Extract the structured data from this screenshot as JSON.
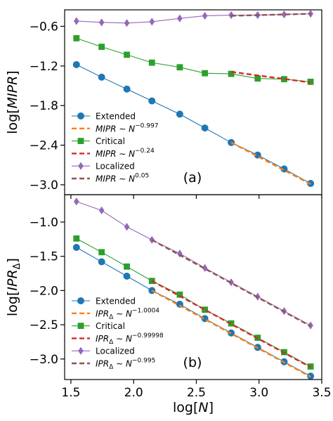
{
  "chart_data": [
    {
      "panel": "a",
      "type": "line",
      "panel_label": "(a)",
      "ylabel": "log[MIPR]",
      "xlabel": "",
      "xlim": [
        1.45,
        3.5
      ],
      "ylim": [
        -3.15,
        -0.35
      ],
      "yticks": [
        -0.6,
        -1.2,
        -1.8,
        -2.4,
        -3.0
      ],
      "ytick_labels": [
        "−0.6",
        "−1.2",
        "−1.8",
        "−2.4",
        "−3.0"
      ],
      "xticks": [
        1.5,
        2.0,
        2.5,
        3.0,
        3.5
      ],
      "legend_position": "lower-left",
      "series": [
        {
          "name": "Extended",
          "kind": "data",
          "marker": "circle",
          "color": "#1f77b4",
          "x": [
            1.544,
            1.745,
            1.946,
            2.146,
            2.368,
            2.568,
            2.778,
            2.989,
            3.2,
            3.411
          ],
          "y": [
            -1.18,
            -1.37,
            -1.55,
            -1.73,
            -1.93,
            -2.14,
            -2.36,
            -2.55,
            -2.76,
            -2.98
          ]
        },
        {
          "name": "Critical",
          "kind": "data",
          "marker": "square",
          "color": "#2ca02c",
          "x": [
            1.544,
            1.745,
            1.946,
            2.146,
            2.368,
            2.568,
            2.778,
            2.989,
            3.2,
            3.411
          ],
          "y": [
            -0.78,
            -0.91,
            -1.03,
            -1.15,
            -1.22,
            -1.31,
            -1.32,
            -1.39,
            -1.4,
            -1.44
          ]
        },
        {
          "name": "Localized",
          "kind": "data",
          "marker": "diamond",
          "color": "#9467bd",
          "x": [
            1.544,
            1.745,
            1.946,
            2.146,
            2.368,
            2.568,
            2.778,
            2.989,
            3.2,
            3.411
          ],
          "y": [
            -0.52,
            -0.54,
            -0.55,
            -0.53,
            -0.48,
            -0.44,
            -0.43,
            -0.43,
            -0.42,
            -0.41
          ]
        },
        {
          "name": "MIPR ~ N^-0.997",
          "label_main": "MIPR ~ N",
          "label_exp": "−0.997",
          "kind": "fit",
          "color": "#ff7f0e",
          "x": [
            2.778,
            3.411
          ],
          "y": [
            -2.36,
            -2.99
          ]
        },
        {
          "name": "MIPR ~ N^-0.24",
          "label_main": "MIPR ~ N",
          "label_exp": "−0.24",
          "kind": "fit",
          "color": "#d62728",
          "x": [
            2.778,
            3.411
          ],
          "y": [
            -1.29,
            -1.45
          ]
        },
        {
          "name": "MIPR ~ N^0.05",
          "label_main": "MIPR ~ N",
          "label_exp": "0.05",
          "kind": "fit",
          "color": "#8c564b",
          "x": [
            2.778,
            3.411
          ],
          "y": [
            -0.44,
            -0.41
          ]
        }
      ]
    },
    {
      "panel": "b",
      "type": "line",
      "panel_label": "(b)",
      "ylabel": "log[IPRΔ]",
      "xlabel": "log[N]",
      "xlim": [
        1.45,
        3.5
      ],
      "ylim": [
        -3.3,
        -0.6
      ],
      "yticks": [
        -1.0,
        -1.5,
        -2.0,
        -2.5,
        -3.0
      ],
      "ytick_labels": [
        "−1.0",
        "−1.5",
        "−2.0",
        "−2.5",
        "−3.0"
      ],
      "xticks": [
        1.5,
        2.0,
        2.5,
        3.0,
        3.5
      ],
      "xtick_labels": [
        "1.5",
        "2.0",
        "2.5",
        "3.0",
        "3.5"
      ],
      "legend_position": "lower-left",
      "series": [
        {
          "name": "Extended",
          "kind": "data",
          "marker": "circle",
          "color": "#1f77b4",
          "x": [
            1.544,
            1.745,
            1.946,
            2.146,
            2.368,
            2.568,
            2.778,
            2.989,
            3.2,
            3.411
          ],
          "y": [
            -1.37,
            -1.58,
            -1.79,
            -2.0,
            -2.2,
            -2.41,
            -2.62,
            -2.83,
            -3.04,
            -3.25
          ]
        },
        {
          "name": "Critical",
          "kind": "data",
          "marker": "square",
          "color": "#2ca02c",
          "x": [
            1.544,
            1.745,
            1.946,
            2.146,
            2.368,
            2.568,
            2.778,
            2.989,
            3.2,
            3.411
          ],
          "y": [
            -1.24,
            -1.44,
            -1.65,
            -1.86,
            -2.06,
            -2.28,
            -2.48,
            -2.69,
            -2.9,
            -3.11
          ]
        },
        {
          "name": "Localized",
          "kind": "data",
          "marker": "diamond",
          "color": "#9467bd",
          "x": [
            1.544,
            1.745,
            1.946,
            2.146,
            2.368,
            2.568,
            2.778,
            2.989,
            3.2,
            3.411
          ],
          "y": [
            -0.7,
            -0.83,
            -1.07,
            -1.26,
            -1.46,
            -1.67,
            -1.88,
            -2.09,
            -2.3,
            -2.51
          ]
        },
        {
          "name": "IPRΔ ~ N^-1.0004",
          "label_main": "IPRΔ ~ N",
          "label_exp": "−1.0004",
          "kind": "fit",
          "color": "#ff7f0e",
          "x": [
            2.146,
            3.411
          ],
          "y": [
            -2.0,
            -3.26
          ]
        },
        {
          "name": "IPRΔ ~ N^-0.99998",
          "label_main": "IPRΔ ~ N",
          "label_exp": "−0.99998",
          "kind": "fit",
          "color": "#d62728",
          "x": [
            2.146,
            3.411
          ],
          "y": [
            -1.86,
            -3.12
          ]
        },
        {
          "name": "IPRΔ ~ N^-0.995",
          "label_main": "IPRΔ ~ N",
          "label_exp": "−0.995",
          "kind": "fit",
          "color": "#8c564b",
          "x": [
            2.146,
            3.411
          ],
          "y": [
            -1.26,
            -2.52
          ]
        }
      ]
    }
  ],
  "legend_order": [
    0,
    3,
    1,
    4,
    2,
    5
  ]
}
